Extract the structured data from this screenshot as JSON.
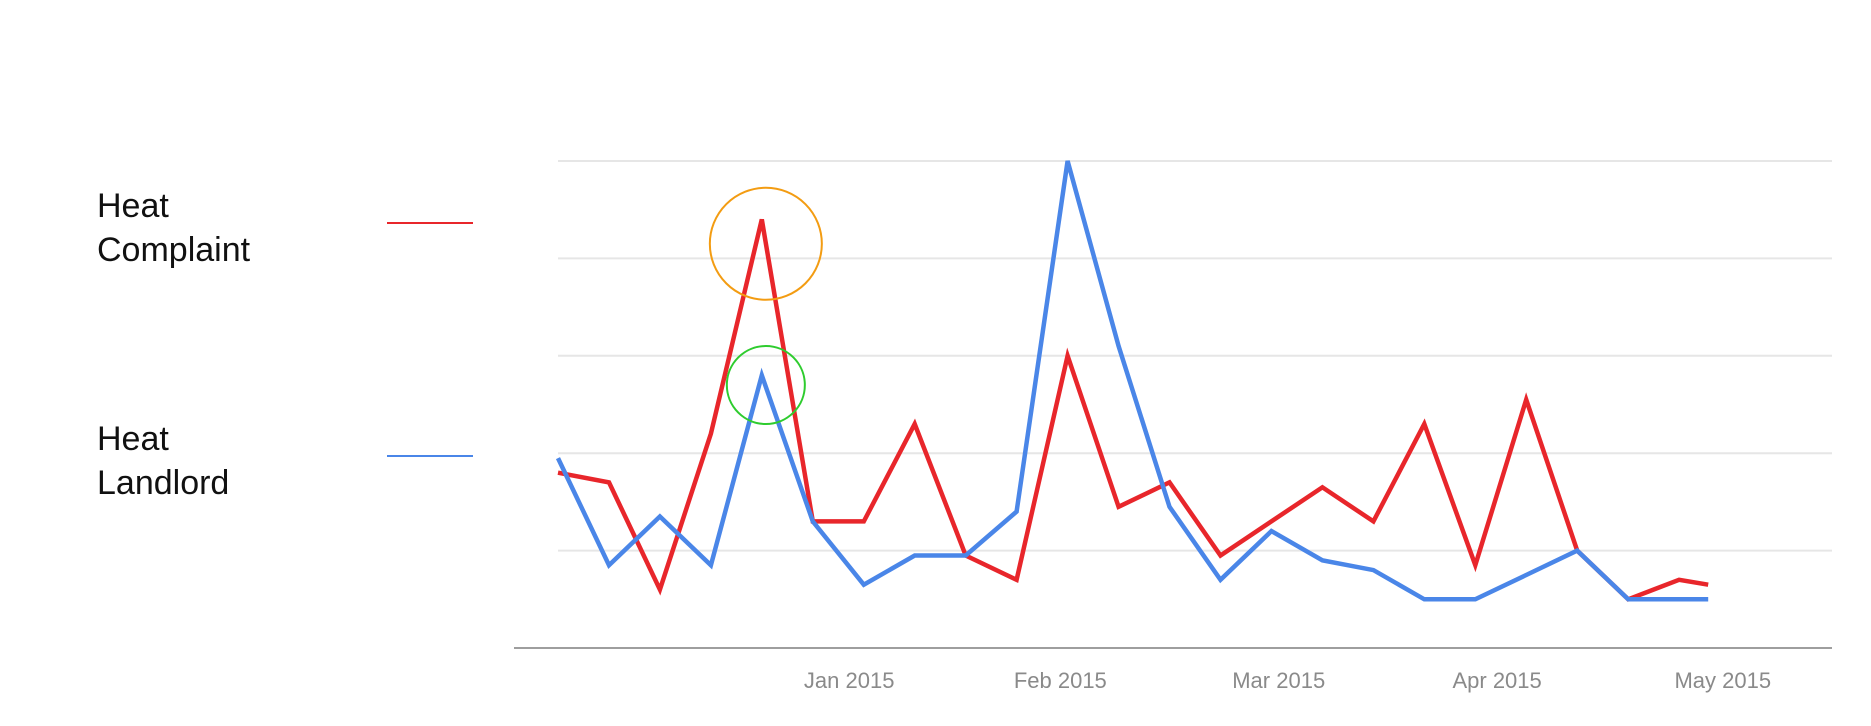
{
  "legend": {
    "series1": {
      "line1": "Heat",
      "line2": "Complaint"
    },
    "series2": {
      "line1": "Heat",
      "line2": "Landlord"
    }
  },
  "colors": {
    "heat_complaint": "#e8262b",
    "heat_landlord": "#4a86e8",
    "grid": "#e6e6e6",
    "axis": "#9e9e9e",
    "annotation_orange": "#f39c12",
    "annotation_green": "#2ecc2e"
  },
  "chart_data": {
    "type": "line",
    "title": "",
    "xlabel": "",
    "ylabel": "",
    "x_ticks": [
      "Jan 2015",
      "Feb 2015",
      "Mar 2015",
      "Apr 2015",
      "May 2015"
    ],
    "x_start": "2014-12-07",
    "x_end": "2015-05-31",
    "ylim": [
      0,
      100
    ],
    "grid": true,
    "legend_position": "left",
    "series": [
      {
        "name": "Heat Complaint",
        "color": "#e8262b",
        "points": [
          [
            "2014-12-07",
            36
          ],
          [
            "2014-12-14",
            34
          ],
          [
            "2014-12-21",
            12
          ],
          [
            "2014-12-28",
            44
          ],
          [
            "2015-01-04",
            88
          ],
          [
            "2015-01-11",
            26
          ],
          [
            "2015-01-18",
            26
          ],
          [
            "2015-01-25",
            46
          ],
          [
            "2015-02-01",
            19
          ],
          [
            "2015-02-08",
            14
          ],
          [
            "2015-02-15",
            60
          ],
          [
            "2015-02-22",
            29
          ],
          [
            "2015-03-01",
            34
          ],
          [
            "2015-03-08",
            19
          ],
          [
            "2015-03-15",
            26
          ],
          [
            "2015-03-22",
            33
          ],
          [
            "2015-03-29",
            26
          ],
          [
            "2015-04-05",
            46
          ],
          [
            "2015-04-12",
            17
          ],
          [
            "2015-04-19",
            51
          ],
          [
            "2015-04-26",
            20
          ],
          [
            "2015-05-03",
            10
          ],
          [
            "2015-05-10",
            14
          ],
          [
            "2015-05-14",
            13
          ]
        ]
      },
      {
        "name": "Heat Landlord",
        "color": "#4a86e8",
        "points": [
          [
            "2014-12-07",
            39
          ],
          [
            "2014-12-14",
            17
          ],
          [
            "2014-12-21",
            27
          ],
          [
            "2014-12-28",
            17
          ],
          [
            "2015-01-04",
            56
          ],
          [
            "2015-01-11",
            26
          ],
          [
            "2015-01-18",
            13
          ],
          [
            "2015-01-25",
            19
          ],
          [
            "2015-02-01",
            19
          ],
          [
            "2015-02-08",
            28
          ],
          [
            "2015-02-15",
            100
          ],
          [
            "2015-02-22",
            62
          ],
          [
            "2015-03-01",
            29
          ],
          [
            "2015-03-08",
            14
          ],
          [
            "2015-03-15",
            24
          ],
          [
            "2015-03-22",
            18
          ],
          [
            "2015-03-29",
            16
          ],
          [
            "2015-04-05",
            10
          ],
          [
            "2015-04-12",
            10
          ],
          [
            "2015-04-19",
            15
          ],
          [
            "2015-04-26",
            20
          ],
          [
            "2015-05-03",
            10
          ],
          [
            "2015-05-10",
            10
          ],
          [
            "2015-05-14",
            10
          ]
        ]
      }
    ],
    "annotations": [
      {
        "shape": "circle",
        "color": "#f39c12",
        "at": [
          "2015-01-04",
          83
        ]
      },
      {
        "shape": "circle",
        "color": "#2ecc2e",
        "at": [
          "2015-01-04",
          54
        ]
      }
    ]
  }
}
